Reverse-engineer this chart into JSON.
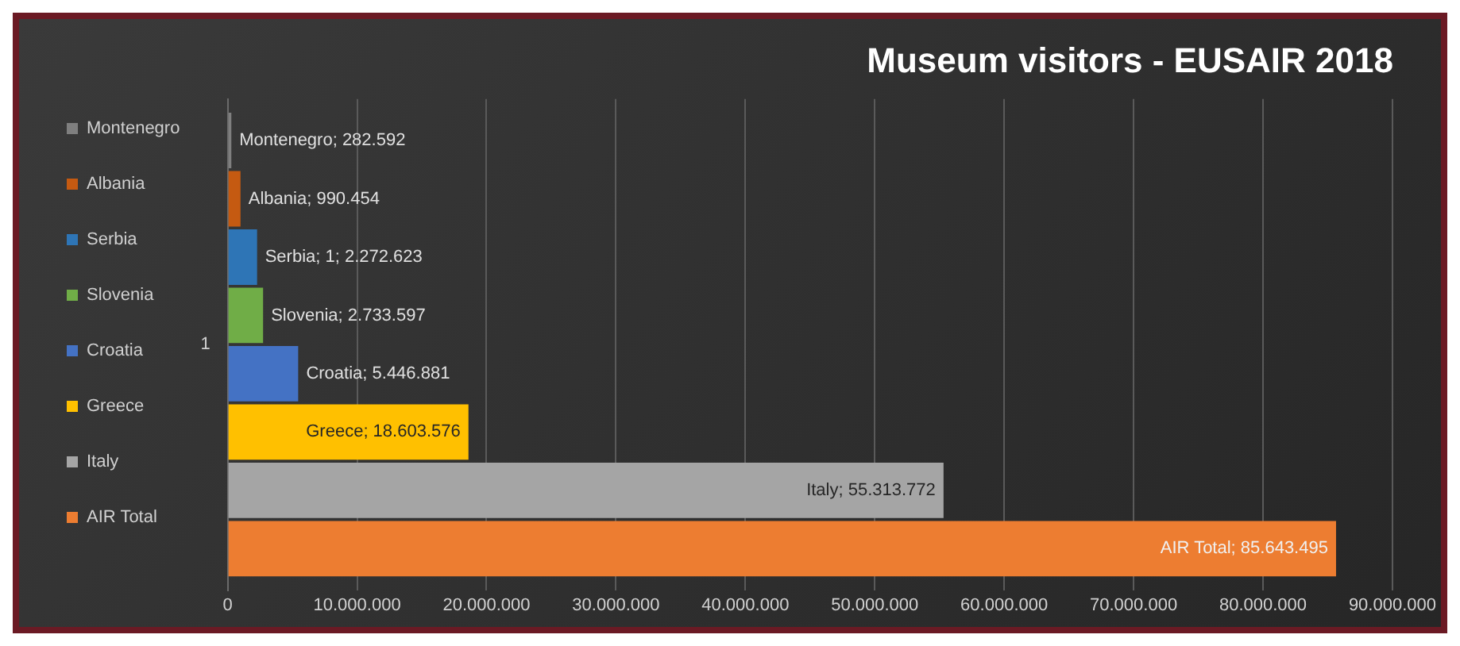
{
  "chart_data": {
    "type": "bar",
    "orientation": "horizontal",
    "title": "Museum visitors - EUSAIR 2018",
    "categories": [
      "1"
    ],
    "series": [
      {
        "name": "Montenegro",
        "color": "#7f7f7f",
        "values": [
          282592
        ],
        "value_labels": [
          "Montenegro; 282.592"
        ]
      },
      {
        "name": "Albania",
        "color": "#c55a11",
        "values": [
          990454
        ],
        "value_labels": [
          "Albania; 990.454"
        ]
      },
      {
        "name": "Serbia",
        "color": "#2e75b6",
        "values": [
          2272623
        ],
        "value_labels": [
          "Serbia; 1; 2.272.623"
        ]
      },
      {
        "name": "Slovenia",
        "color": "#70ad47",
        "values": [
          2733597
        ],
        "value_labels": [
          "Slovenia; 2.733.597"
        ]
      },
      {
        "name": "Croatia",
        "color": "#4472c4",
        "values": [
          5446881
        ],
        "value_labels": [
          "Croatia; 5.446.881"
        ]
      },
      {
        "name": "Greece",
        "color": "#ffc000",
        "values": [
          18603576
        ],
        "value_labels": [
          "Greece; 18.603.576"
        ]
      },
      {
        "name": "Italy",
        "color": "#a5a5a5",
        "values": [
          55313772
        ],
        "value_labels": [
          "Italy; 55.313.772"
        ]
      },
      {
        "name": "AIR Total",
        "color": "#ed7d31",
        "values": [
          85643495
        ],
        "value_labels": [
          "AIR Total; 85.643.495"
        ]
      }
    ],
    "xlim": [
      0,
      90000000
    ],
    "xticks": [
      0,
      {
        "value": 10000000,
        "label": "10.000.000"
      },
      {
        "value": 20000000,
        "label": "20.000.000"
      },
      {
        "value": 30000000,
        "label": "30.000.000"
      },
      {
        "value": 40000000,
        "label": "40.000.000"
      },
      {
        "value": 50000000,
        "label": "50.000.000"
      },
      {
        "value": 60000000,
        "label": "60.000.000"
      },
      {
        "value": 70000000,
        "label": "70.000.000"
      },
      {
        "value": 80000000,
        "label": "80.000.000"
      },
      {
        "value": 90000000,
        "label": "90.000.000"
      }
    ],
    "grid": "x",
    "legend": "left"
  }
}
